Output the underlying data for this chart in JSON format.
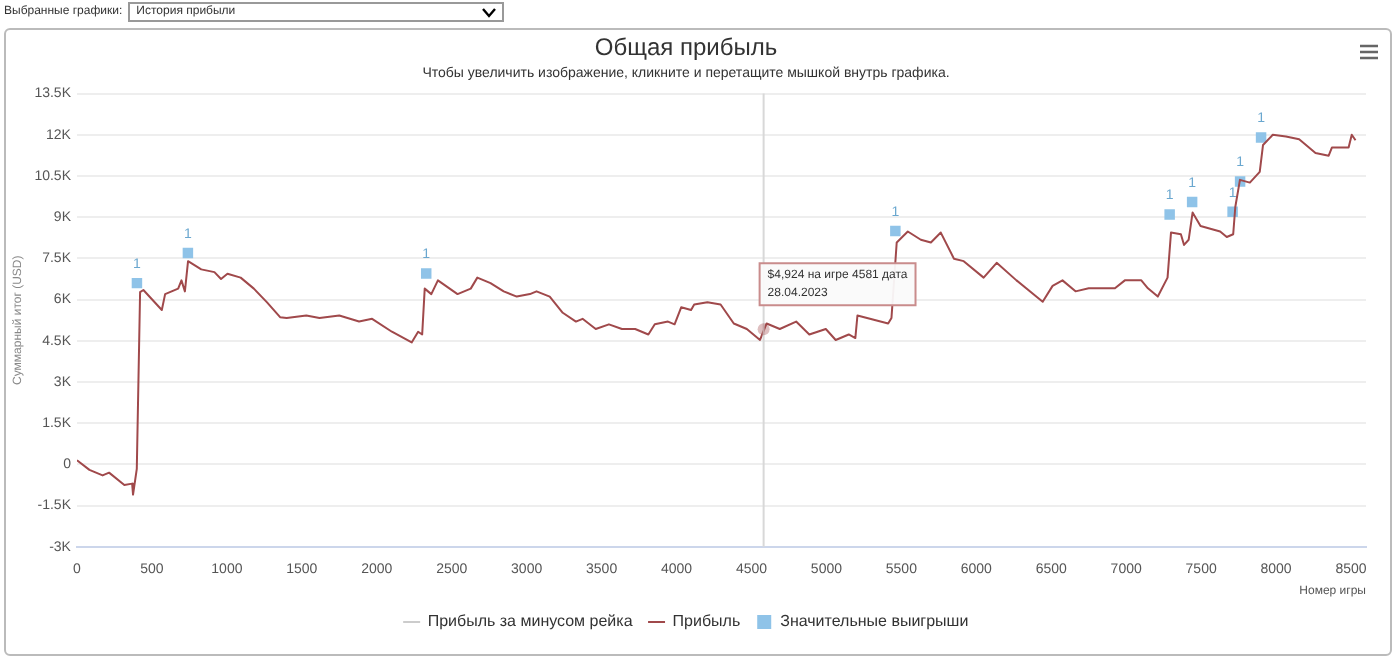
{
  "chart_data": {
    "type": "line",
    "title": "Общая прибыль",
    "subtitle": "Чтобы увеличить изображение, кликните и перетащите мышкой внутрь графика.",
    "xlabel": "Номер игры",
    "ylabel": "Суммарный итог (USD)",
    "annotations": [
      "Выбранные графики:",
      "История прибыли",
      {
        "text": "$4,924 на игре 4581 дата 28.04.2023",
        "x": 4581,
        "y": 4924
      },
      {
        "text": "1",
        "x": 400,
        "y": 6600
      },
      {
        "text": "1",
        "x": 740,
        "y": 7700
      },
      {
        "text": "1",
        "x": 2330,
        "y": 6950
      },
      {
        "text": "1",
        "x": 5460,
        "y": 8500
      },
      {
        "text": "1",
        "x": 7290,
        "y": 9100
      },
      {
        "text": "1",
        "x": 7440,
        "y": 9550
      },
      {
        "text": "1",
        "x": 7710,
        "y": 9200
      },
      {
        "text": "1",
        "x": 7760,
        "y": 10300
      },
      {
        "text": "1",
        "x": 7900,
        "y": 11900
      }
    ],
    "xlim": [
      0,
      8600
    ],
    "xticks": [
      0,
      500,
      1000,
      1500,
      2000,
      2500,
      3000,
      3500,
      4000,
      4500,
      5000,
      5500,
      6000,
      6500,
      7000,
      7500,
      8000,
      8500
    ],
    "ylim": [
      -3000,
      13500
    ],
    "yticks": [
      {
        "value": -3000,
        "label": "-3K"
      },
      {
        "value": -1500,
        "label": "-1.5K"
      },
      {
        "value": 0,
        "label": "0"
      },
      {
        "value": 1500,
        "label": "1.5K"
      },
      {
        "value": 3000,
        "label": "3K"
      },
      {
        "value": 4500,
        "label": "4.5K"
      },
      {
        "value": 6000,
        "label": "6K"
      },
      {
        "value": 7500,
        "label": "7.5K"
      },
      {
        "value": 9000,
        "label": "9K"
      },
      {
        "value": 10500,
        "label": "10.5K"
      },
      {
        "value": 12000,
        "label": "12K"
      },
      {
        "value": 13500,
        "label": "13.5K"
      }
    ],
    "grid": "y",
    "legend": "bottom",
    "marker": "none",
    "line_style": "solid",
    "ref_lines": [
      {
        "axis": "x",
        "value": 4581,
        "color": "#d8d8d8"
      }
    ],
    "series": [
      {
        "name": "Прибыль за минусом рейка",
        "color": "#cccccc"
      },
      {
        "name": "Прибыль",
        "color": "#a0494b",
        "x": [
          0,
          83,
          171,
          214,
          316,
          368,
          374,
          399,
          421,
          443,
          566,
          588,
          675,
          697,
          720,
          741,
          829,
          917,
          961,
          1004,
          1092,
          1180,
          1268,
          1355,
          1399,
          1530,
          1618,
          1750,
          1882,
          1969,
          2101,
          2233,
          2276,
          2303,
          2320,
          2364,
          2408,
          2539,
          2627,
          2671,
          2759,
          2847,
          2934,
          3022,
          3066,
          3154,
          3241,
          3329,
          3373,
          3461,
          3549,
          3636,
          3724,
          3812,
          3855,
          3943,
          3987,
          4031,
          4097,
          4118,
          4206,
          4294,
          4382,
          4469,
          4557,
          4601,
          4689,
          4798,
          4886,
          4996,
          5062,
          5149,
          5193,
          5207,
          5412,
          5434,
          5469,
          5543,
          5630,
          5697,
          5763,
          5851,
          5916,
          6049,
          6136,
          6268,
          6443,
          6509,
          6575,
          6662,
          6750,
          6925,
          6991,
          7101,
          7145,
          7211,
          7276,
          7299,
          7365,
          7386,
          7417,
          7443,
          7496,
          7627,
          7671,
          7714,
          7728,
          7759,
          7825,
          7891,
          7913,
          7978,
          8066,
          8154,
          8263,
          8351,
          8373,
          8484,
          8505,
          8530
        ],
        "values": [
          150,
          -200,
          -400,
          -300,
          -750,
          -700,
          -1100,
          -160,
          6270,
          6350,
          5620,
          6200,
          6400,
          6700,
          6300,
          7400,
          7100,
          7000,
          6750,
          6940,
          6800,
          6400,
          5900,
          5360,
          5330,
          5420,
          5330,
          5420,
          5200,
          5300,
          4830,
          4440,
          4830,
          4730,
          6400,
          6200,
          6700,
          6200,
          6400,
          6800,
          6600,
          6300,
          6110,
          6200,
          6300,
          6110,
          5520,
          5200,
          5300,
          4930,
          5100,
          4930,
          4930,
          4730,
          5100,
          5200,
          5100,
          5720,
          5620,
          5820,
          5900,
          5820,
          5130,
          4930,
          4530,
          5130,
          4930,
          5200,
          4730,
          4930,
          4530,
          4730,
          4600,
          5420,
          5130,
          5330,
          8080,
          8480,
          8180,
          8080,
          8440,
          7490,
          7400,
          6800,
          7340,
          6700,
          5920,
          6500,
          6700,
          6300,
          6410,
          6410,
          6700,
          6700,
          6410,
          6110,
          6800,
          8440,
          8380,
          7990,
          8180,
          9170,
          8680,
          8480,
          8280,
          8380,
          9370,
          10360,
          10260,
          10650,
          11630,
          12000,
          11940,
          11840,
          11340,
          11240,
          11540,
          11540,
          12000,
          11800
        ]
      },
      {
        "name": "Значительные выигрыши",
        "type": "scatter",
        "color": "#8fc3e8",
        "marker": "square",
        "x": [
          400,
          740,
          2330,
          5460,
          7290,
          7440,
          7710,
          7760,
          7900
        ],
        "values": [
          6600,
          7700,
          6950,
          8500,
          9100,
          9550,
          9200,
          10300,
          11900
        ]
      }
    ]
  }
}
